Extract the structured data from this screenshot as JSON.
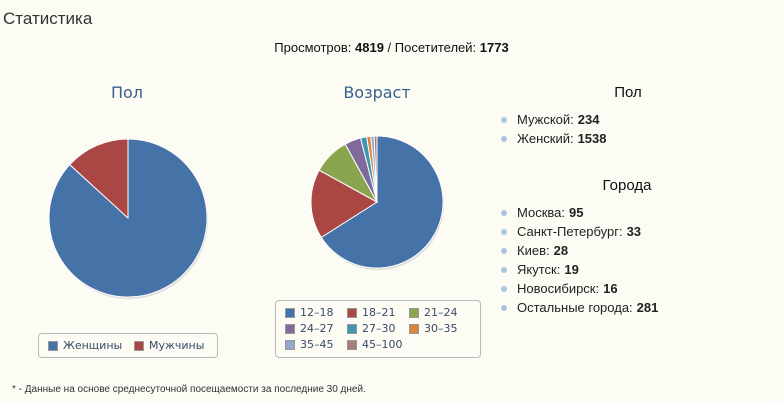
{
  "page": {
    "title": "Статистика",
    "views_label": "Просмотров:",
    "views_value": "4819",
    "separator": " / ",
    "visitors_label": "Посетителей:",
    "visitors_value": "1773",
    "footnote": "* - Данные на основе среднесуточной посещаемости за последние 30 дней."
  },
  "chart_data": [
    {
      "type": "pie",
      "title": "Пол",
      "series": [
        {
          "label": "Женщины",
          "value": 1538,
          "color": "#4572a7"
        },
        {
          "label": "Мужчины",
          "value": 234,
          "color": "#aa4643"
        }
      ]
    },
    {
      "type": "pie",
      "title": "Возраст",
      "series": [
        {
          "label": "12–18",
          "value": 66,
          "color": "#4572a7"
        },
        {
          "label": "18–21",
          "value": 17,
          "color": "#aa4643"
        },
        {
          "label": "21–24",
          "value": 9,
          "color": "#89a54e"
        },
        {
          "label": "24–27",
          "value": 4,
          "color": "#80699b"
        },
        {
          "label": "27–30",
          "value": 1.5,
          "color": "#3d96ae"
        },
        {
          "label": "30–35",
          "value": 1,
          "color": "#db843d"
        },
        {
          "label": "35–45",
          "value": 0.8,
          "color": "#92a8cd"
        },
        {
          "label": "45–100",
          "value": 0.7,
          "color": "#a47d7c"
        }
      ]
    }
  ],
  "gender_panel": {
    "title": "Пол",
    "items": [
      {
        "label": "Мужской:",
        "value": "234"
      },
      {
        "label": "Женский:",
        "value": "1538"
      }
    ]
  },
  "cities_panel": {
    "title": "Города",
    "items": [
      {
        "label": "Москва:",
        "value": "95"
      },
      {
        "label": "Санкт-Петербург:",
        "value": "33"
      },
      {
        "label": "Киев:",
        "value": "28"
      },
      {
        "label": "Якутск:",
        "value": "19"
      },
      {
        "label": "Новосибирск:",
        "value": "16"
      },
      {
        "label": "Остальные города:",
        "value": "281"
      }
    ]
  }
}
